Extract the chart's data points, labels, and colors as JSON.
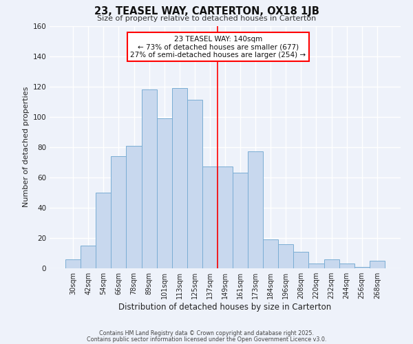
{
  "title": "23, TEASEL WAY, CARTERTON, OX18 1JB",
  "subtitle": "Size of property relative to detached houses in Carterton",
  "xlabel": "Distribution of detached houses by size in Carterton",
  "ylabel": "Number of detached properties",
  "bar_labels": [
    "30sqm",
    "42sqm",
    "54sqm",
    "66sqm",
    "78sqm",
    "89sqm",
    "101sqm",
    "113sqm",
    "125sqm",
    "137sqm",
    "149sqm",
    "161sqm",
    "173sqm",
    "184sqm",
    "196sqm",
    "208sqm",
    "220sqm",
    "232sqm",
    "244sqm",
    "256sqm",
    "268sqm"
  ],
  "bar_values": [
    6,
    15,
    50,
    74,
    81,
    118,
    99,
    119,
    111,
    67,
    67,
    63,
    77,
    19,
    16,
    11,
    3,
    6,
    3,
    1,
    5
  ],
  "bar_color": "#c8d8ee",
  "bar_edge_color": "#7aadd4",
  "background_color": "#eef2fa",
  "grid_color": "#ffffff",
  "vline_x": 9.5,
  "vline_color": "red",
  "annotation_title": "23 TEASEL WAY: 140sqm",
  "annotation_line1": "← 73% of detached houses are smaller (677)",
  "annotation_line2": "27% of semi-detached houses are larger (254) →",
  "annotation_box_color": "#ffffff",
  "annotation_box_edge": "red",
  "ylim": [
    0,
    160
  ],
  "yticks": [
    0,
    20,
    40,
    60,
    80,
    100,
    120,
    140,
    160
  ],
  "footer1": "Contains HM Land Registry data © Crown copyright and database right 2025.",
  "footer2": "Contains public sector information licensed under the Open Government Licence v3.0."
}
